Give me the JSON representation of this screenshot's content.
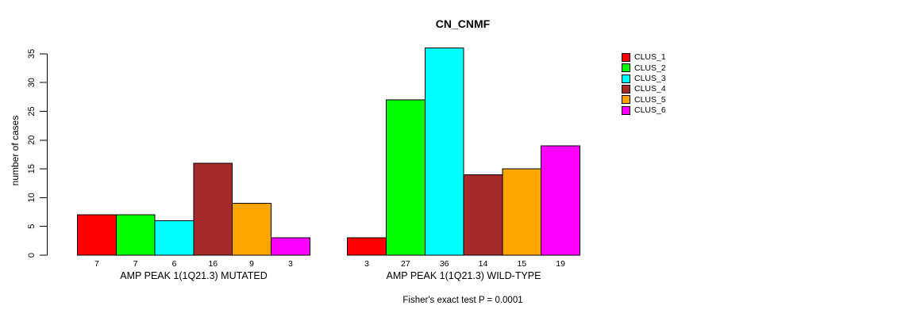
{
  "chart_data": {
    "type": "bar",
    "title": "CN_CNMF",
    "ylabel": "number of cases",
    "subtitle": "Fisher's exact test P = 0.0001",
    "yticks": [
      0,
      5,
      10,
      15,
      20,
      25,
      30,
      35
    ],
    "ylim": [
      0,
      36
    ],
    "grid": false,
    "legend_position": "right",
    "bar_value_labels": true,
    "categories": [
      "AMP PEAK  1(1Q21.3) MUTATED",
      "AMP PEAK  1(1Q21.3) WILD-TYPE"
    ],
    "series": [
      {
        "name": "CLUS_1",
        "color": "#FF0000",
        "values": [
          7,
          3
        ]
      },
      {
        "name": "CLUS_2",
        "color": "#00FF00",
        "values": [
          7,
          27
        ]
      },
      {
        "name": "CLUS_3",
        "color": "#00FFFF",
        "values": [
          6,
          36
        ]
      },
      {
        "name": "CLUS_4",
        "color": "#A52A2A",
        "values": [
          16,
          14
        ]
      },
      {
        "name": "CLUS_5",
        "color": "#FFA500",
        "values": [
          9,
          15
        ]
      },
      {
        "name": "CLUS_6",
        "color": "#FF00FF",
        "values": [
          3,
          19
        ]
      }
    ],
    "colors": {
      "axis": "#000000",
      "text": "#000000",
      "background": "#FFFFFF"
    }
  }
}
